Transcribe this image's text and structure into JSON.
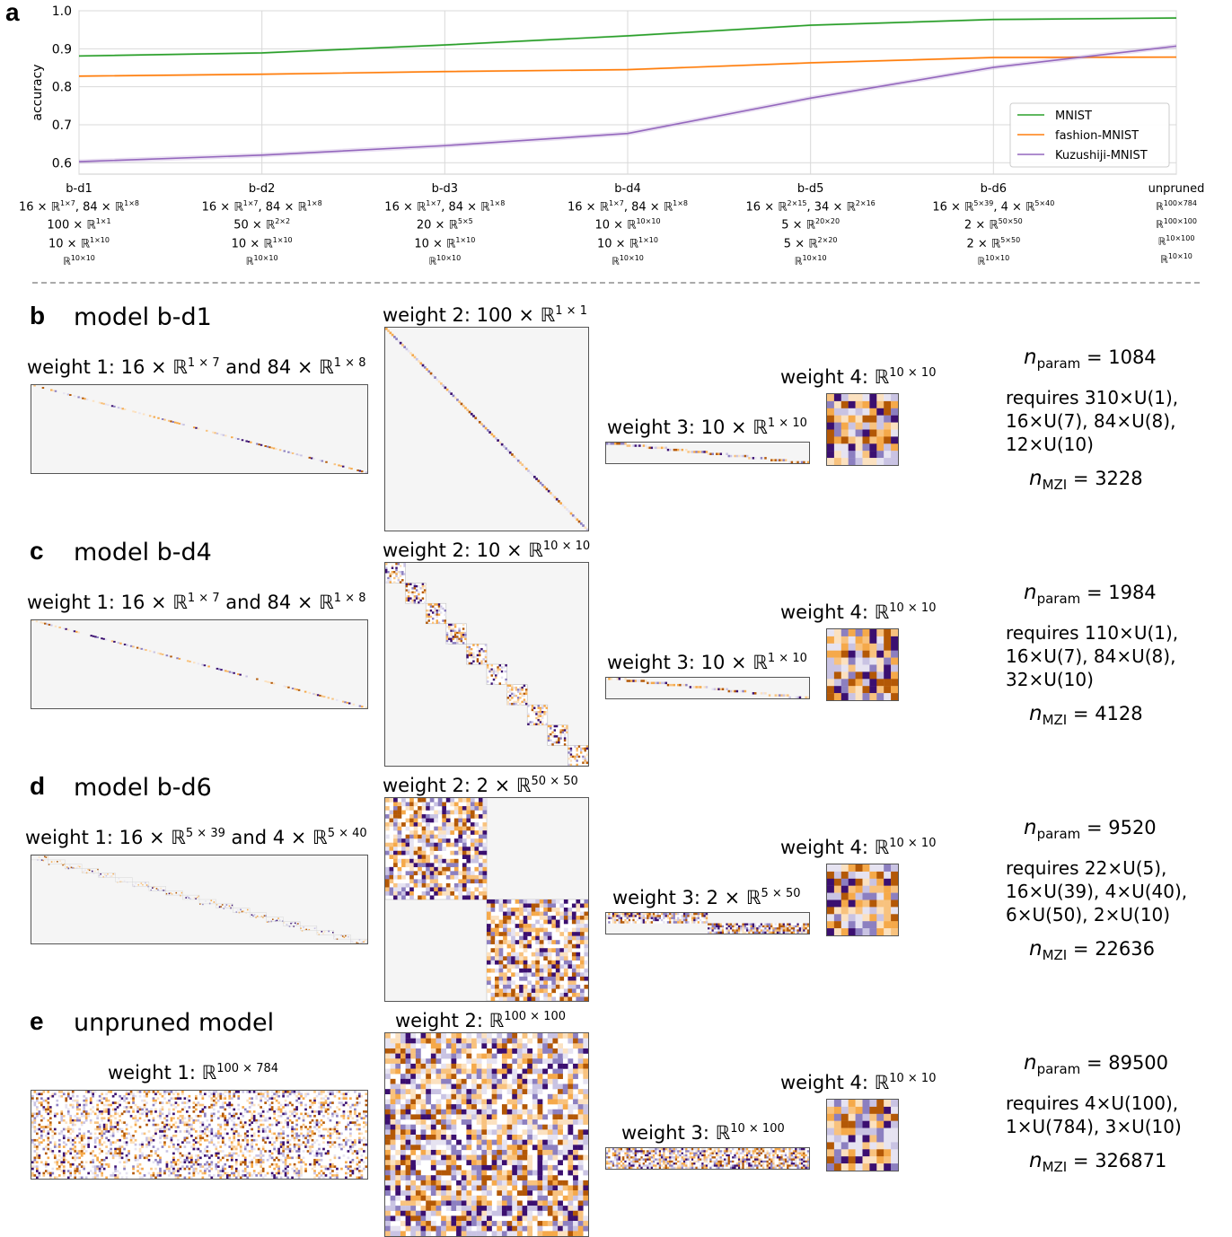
{
  "panels": {
    "a": "a",
    "b": "b",
    "c": "c",
    "d": "d",
    "e": "e"
  },
  "chart_data": {
    "type": "line",
    "ylabel": "accuracy",
    "ylim": [
      0.57,
      1.0
    ],
    "yticks": [
      "1.0",
      "0.9",
      "0.8",
      "0.7",
      "0.6"
    ],
    "ytick_values": [
      1.0,
      0.9,
      0.8,
      0.7,
      0.6
    ],
    "grid": true,
    "legend_position": "lower-right",
    "categories": [
      "b-d1",
      "b-d2",
      "b-d3",
      "b-d4",
      "b-d5",
      "b-d6",
      "unpruned"
    ],
    "category_details": [
      [
        "16 × ℝ^{1×7}, 84 × ℝ^{1×8}",
        "100 × ℝ^{1×1}",
        "10 × ℝ^{1×10}",
        "ℝ^{10×10}"
      ],
      [
        "16 × ℝ^{1×7}, 84 × ℝ^{1×8}",
        "50 × ℝ^{2×2}",
        "10 × ℝ^{1×10}",
        "ℝ^{10×10}"
      ],
      [
        "16 × ℝ^{1×7}, 84 × ℝ^{1×8}",
        "20 × ℝ^{5×5}",
        "10 × ℝ^{1×10}",
        "ℝ^{10×10}"
      ],
      [
        "16 × ℝ^{1×7}, 84 × ℝ^{1×8}",
        "10 × ℝ^{10×10}",
        "10 × ℝ^{1×10}",
        "ℝ^{10×10}"
      ],
      [
        "16 × ℝ^{2×15}, 34 × ℝ^{2×16}",
        "5 × ℝ^{20×20}",
        "5 × ℝ^{2×20}",
        "ℝ^{10×10}"
      ],
      [
        "16 × ℝ^{5×39}, 4 × ℝ^{5×40}",
        "2 × ℝ^{50×50}",
        "2 × ℝ^{5×50}",
        "ℝ^{10×10}"
      ],
      [
        "ℝ^{100×784}",
        "ℝ^{100×100}",
        "ℝ^{10×100}",
        "ℝ^{10×10}"
      ]
    ],
    "series": [
      {
        "name": "MNIST",
        "color": "#2ca02c",
        "values": [
          0.881,
          0.889,
          0.91,
          0.934,
          0.962,
          0.977,
          0.981
        ]
      },
      {
        "name": "fashion-MNIST",
        "color": "#ff7f0e",
        "values": [
          0.828,
          0.833,
          0.84,
          0.845,
          0.863,
          0.877,
          0.878
        ]
      },
      {
        "name": "Kuzushiji-MNIST",
        "color": "#9467bd",
        "values": [
          0.603,
          0.62,
          0.645,
          0.677,
          0.77,
          0.851,
          0.907
        ]
      }
    ]
  },
  "models": [
    {
      "letter": "b",
      "title": "model b-d1",
      "w1_label": "weight 1: 16 × ℝ",
      "w1_sup1": "1 × 7",
      "w1_mid": " and 84 × ℝ",
      "w1_sup2": "1 × 8",
      "w2_label": "weight 2: 100 × ℝ",
      "w2_sup": "1 × 1",
      "w3_label": "weight 3: 10 × ℝ",
      "w3_sup": "1 × 10",
      "w4_label": "weight 4: ℝ",
      "w4_sup": "10 × 10",
      "n_param_label": "param",
      "n_param_value": "= 1084",
      "requires": [
        "requires 310×U(1),",
        "16×U(7), 84×U(8),",
        "12×U(10)"
      ],
      "n_mzi_label": "MZI",
      "n_mzi_value": "= 3228"
    },
    {
      "letter": "c",
      "title": "model b-d4",
      "w1_label": "weight 1: 16 × ℝ",
      "w1_sup1": "1 × 7",
      "w1_mid": " and 84 × ℝ",
      "w1_sup2": "1 × 8",
      "w2_label": "weight 2: 10 × ℝ",
      "w2_sup": "10 × 10",
      "w3_label": "weight 3: 10 × ℝ",
      "w3_sup": "1 × 10",
      "w4_label": "weight 4: ℝ",
      "w4_sup": "10 × 10",
      "n_param_label": "param",
      "n_param_value": "= 1984",
      "requires": [
        "requires 110×U(1),",
        "16×U(7), 84×U(8),",
        "32×U(10)"
      ],
      "n_mzi_label": "MZI",
      "n_mzi_value": "= 4128"
    },
    {
      "letter": "d",
      "title": "model b-d6",
      "w1_label": "weight 1: 16 × ℝ",
      "w1_sup1": "5 × 39",
      "w1_mid": " and 4 × ℝ",
      "w1_sup2": "5 × 40",
      "w2_label": "weight 2: 2 × ℝ",
      "w2_sup": "50 × 50",
      "w3_label": "weight 3: 2 × ℝ",
      "w3_sup": "5 × 50",
      "w4_label": "weight 4: ℝ",
      "w4_sup": "10 × 10",
      "n_param_label": "param",
      "n_param_value": "= 9520",
      "requires": [
        "requires 22×U(5),",
        "16×U(39), 4×U(40),",
        "6×U(50), 2×U(10)"
      ],
      "n_mzi_label": "MZI",
      "n_mzi_value": "= 22636"
    },
    {
      "letter": "e",
      "title": "unpruned model",
      "w1_label": "weight 1: ℝ",
      "w1_sup1": "100 × 784",
      "w1_mid": "",
      "w1_sup2": "",
      "w2_label": "weight 2: ℝ",
      "w2_sup": "100 × 100",
      "w3_label": "weight 3: ℝ",
      "w3_sup": "10 × 100",
      "w4_label": "weight 4: ℝ",
      "w4_sup": "10 × 10",
      "n_param_label": "param",
      "n_param_value": "= 89500",
      "requires": [
        "requires 4×U(100),",
        "1×U(784), 3×U(10)"
      ],
      "n_mzi_label": "MZI",
      "n_mzi_value": "= 326871"
    }
  ],
  "colormap": {
    "low": "#3b0f70",
    "mid_low": "#8c7fc0",
    "zero": "#f5f5f5",
    "mid_high": "#f5a94a",
    "high": "#b35806"
  }
}
